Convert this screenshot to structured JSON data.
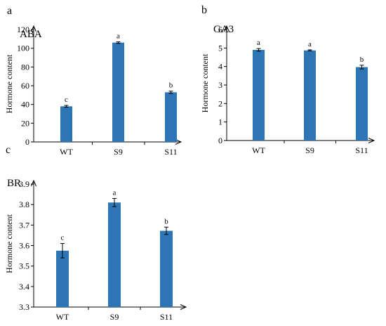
{
  "chart_data": [
    {
      "type": "bar",
      "panel": "a",
      "title": "ABA",
      "ylabel": "Hormone content",
      "categories": [
        "WT",
        "S9",
        "S11"
      ],
      "values": [
        38,
        106,
        53
      ],
      "errors": [
        1,
        0.8,
        1.2
      ],
      "significance": [
        "c",
        "a",
        "b"
      ],
      "ylim": [
        0,
        120
      ],
      "yticks": [
        "0",
        "20",
        "40",
        "60",
        "80",
        "100",
        "120"
      ],
      "bar_color": "#2e75b6"
    },
    {
      "type": "bar",
      "panel": "b",
      "title": "GA3",
      "ylabel": "Hormone content",
      "categories": [
        "WT",
        "S9",
        "S11"
      ],
      "values": [
        4.9,
        4.87,
        3.97
      ],
      "errors": [
        0.07,
        0.03,
        0.1
      ],
      "significance": [
        "a",
        "a",
        "b"
      ],
      "ylim": [
        0,
        6
      ],
      "yticks": [
        "0",
        "1",
        "2",
        "3",
        "4",
        "5",
        "6"
      ],
      "bar_color": "#2e75b6"
    },
    {
      "type": "bar",
      "panel": "c",
      "title": "BR",
      "ylabel": "Hormone content",
      "categories": [
        "WT",
        "S9",
        "S11"
      ],
      "values": [
        3.575,
        3.81,
        3.672
      ],
      "errors": [
        0.035,
        0.02,
        0.018
      ],
      "significance": [
        "c",
        "a",
        "b"
      ],
      "ylim": [
        3.3,
        3.9
      ],
      "yticks": [
        "3.3",
        "3.4",
        "3.5",
        "3.6",
        "3.7",
        "3.8",
        "3.9"
      ],
      "bar_color": "#2e75b6"
    }
  ]
}
